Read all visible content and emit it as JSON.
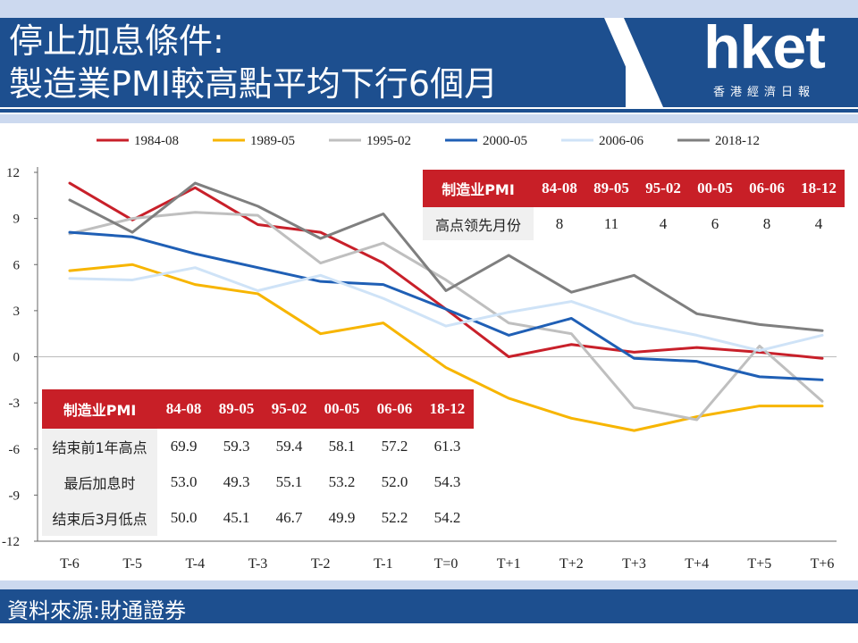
{
  "header": {
    "title_line1": "停止加息條件:",
    "title_line2": "製造業PMI較高點平均下行6個月",
    "logo_text": "hket",
    "logo_sub": "香港經濟日報"
  },
  "footer": {
    "source": "資料來源:財通證券"
  },
  "colors": {
    "brand_blue": "#1d4f8f",
    "table_header_red": "#c81f27"
  },
  "chart_data": {
    "type": "line",
    "title": "",
    "xlabel": "",
    "ylabel": "",
    "categories": [
      "T-6",
      "T-5",
      "T-4",
      "T-3",
      "T-2",
      "T-1",
      "T=0",
      "T+1",
      "T+2",
      "T+3",
      "T+4",
      "T+5",
      "T+6"
    ],
    "ylim": [
      -12,
      12
    ],
    "yticks": [
      12,
      9,
      6,
      3,
      0,
      -3,
      -6,
      -9,
      -12
    ],
    "legend_position": "top",
    "grid": false,
    "series": [
      {
        "name": "1984-08",
        "color": "#c8202a",
        "values": [
          11.3,
          8.9,
          11.0,
          8.6,
          8.1,
          6.1,
          3.1,
          0.0,
          0.8,
          0.3,
          0.6,
          0.3,
          -0.1
        ]
      },
      {
        "name": "1989-05",
        "color": "#f7b500",
        "values": [
          5.6,
          6.0,
          4.7,
          4.1,
          1.5,
          2.2,
          -0.7,
          -2.7,
          -4.0,
          -4.8,
          -3.9,
          -3.2,
          -3.2
        ]
      },
      {
        "name": "1995-02",
        "color": "#bfbfbf",
        "values": [
          8.0,
          9.0,
          9.4,
          9.2,
          6.1,
          7.4,
          5.0,
          2.2,
          1.5,
          -3.3,
          -4.1,
          0.7,
          -2.9
        ]
      },
      {
        "name": "2000-05",
        "color": "#1f5fb5",
        "values": [
          8.1,
          7.8,
          6.7,
          5.8,
          4.9,
          4.7,
          3.1,
          1.4,
          2.5,
          -0.1,
          -0.3,
          -1.3,
          -1.5
        ]
      },
      {
        "name": "2006-06",
        "color": "#cfe3f7",
        "values": [
          5.1,
          5.0,
          5.8,
          4.3,
          5.3,
          3.8,
          2.0,
          2.9,
          3.6,
          2.2,
          1.4,
          0.4,
          1.4
        ]
      },
      {
        "name": "2018-12",
        "color": "#7f7f7f",
        "values": [
          10.2,
          8.1,
          11.3,
          9.8,
          7.7,
          9.3,
          4.3,
          6.6,
          4.2,
          5.3,
          2.8,
          2.1,
          1.7
        ]
      }
    ]
  },
  "lead_table": {
    "header": [
      "制造业PMI",
      "84-08",
      "89-05",
      "95-02",
      "00-05",
      "06-06",
      "18-12"
    ],
    "rows": [
      {
        "label": "高点领先月份",
        "values": [
          "8",
          "11",
          "4",
          "6",
          "8",
          "4"
        ]
      }
    ]
  },
  "level_table": {
    "header": [
      "制造业PMI",
      "84-08",
      "89-05",
      "95-02",
      "00-05",
      "06-06",
      "18-12"
    ],
    "rows": [
      {
        "label": "结束前1年高点",
        "values": [
          "69.9",
          "59.3",
          "59.4",
          "58.1",
          "57.2",
          "61.3"
        ]
      },
      {
        "label": "最后加息时",
        "values": [
          "53.0",
          "49.3",
          "55.1",
          "53.2",
          "52.0",
          "54.3"
        ]
      },
      {
        "label": "结束后3月低点",
        "values": [
          "50.0",
          "45.1",
          "46.7",
          "49.9",
          "52.2",
          "54.2"
        ]
      }
    ]
  }
}
